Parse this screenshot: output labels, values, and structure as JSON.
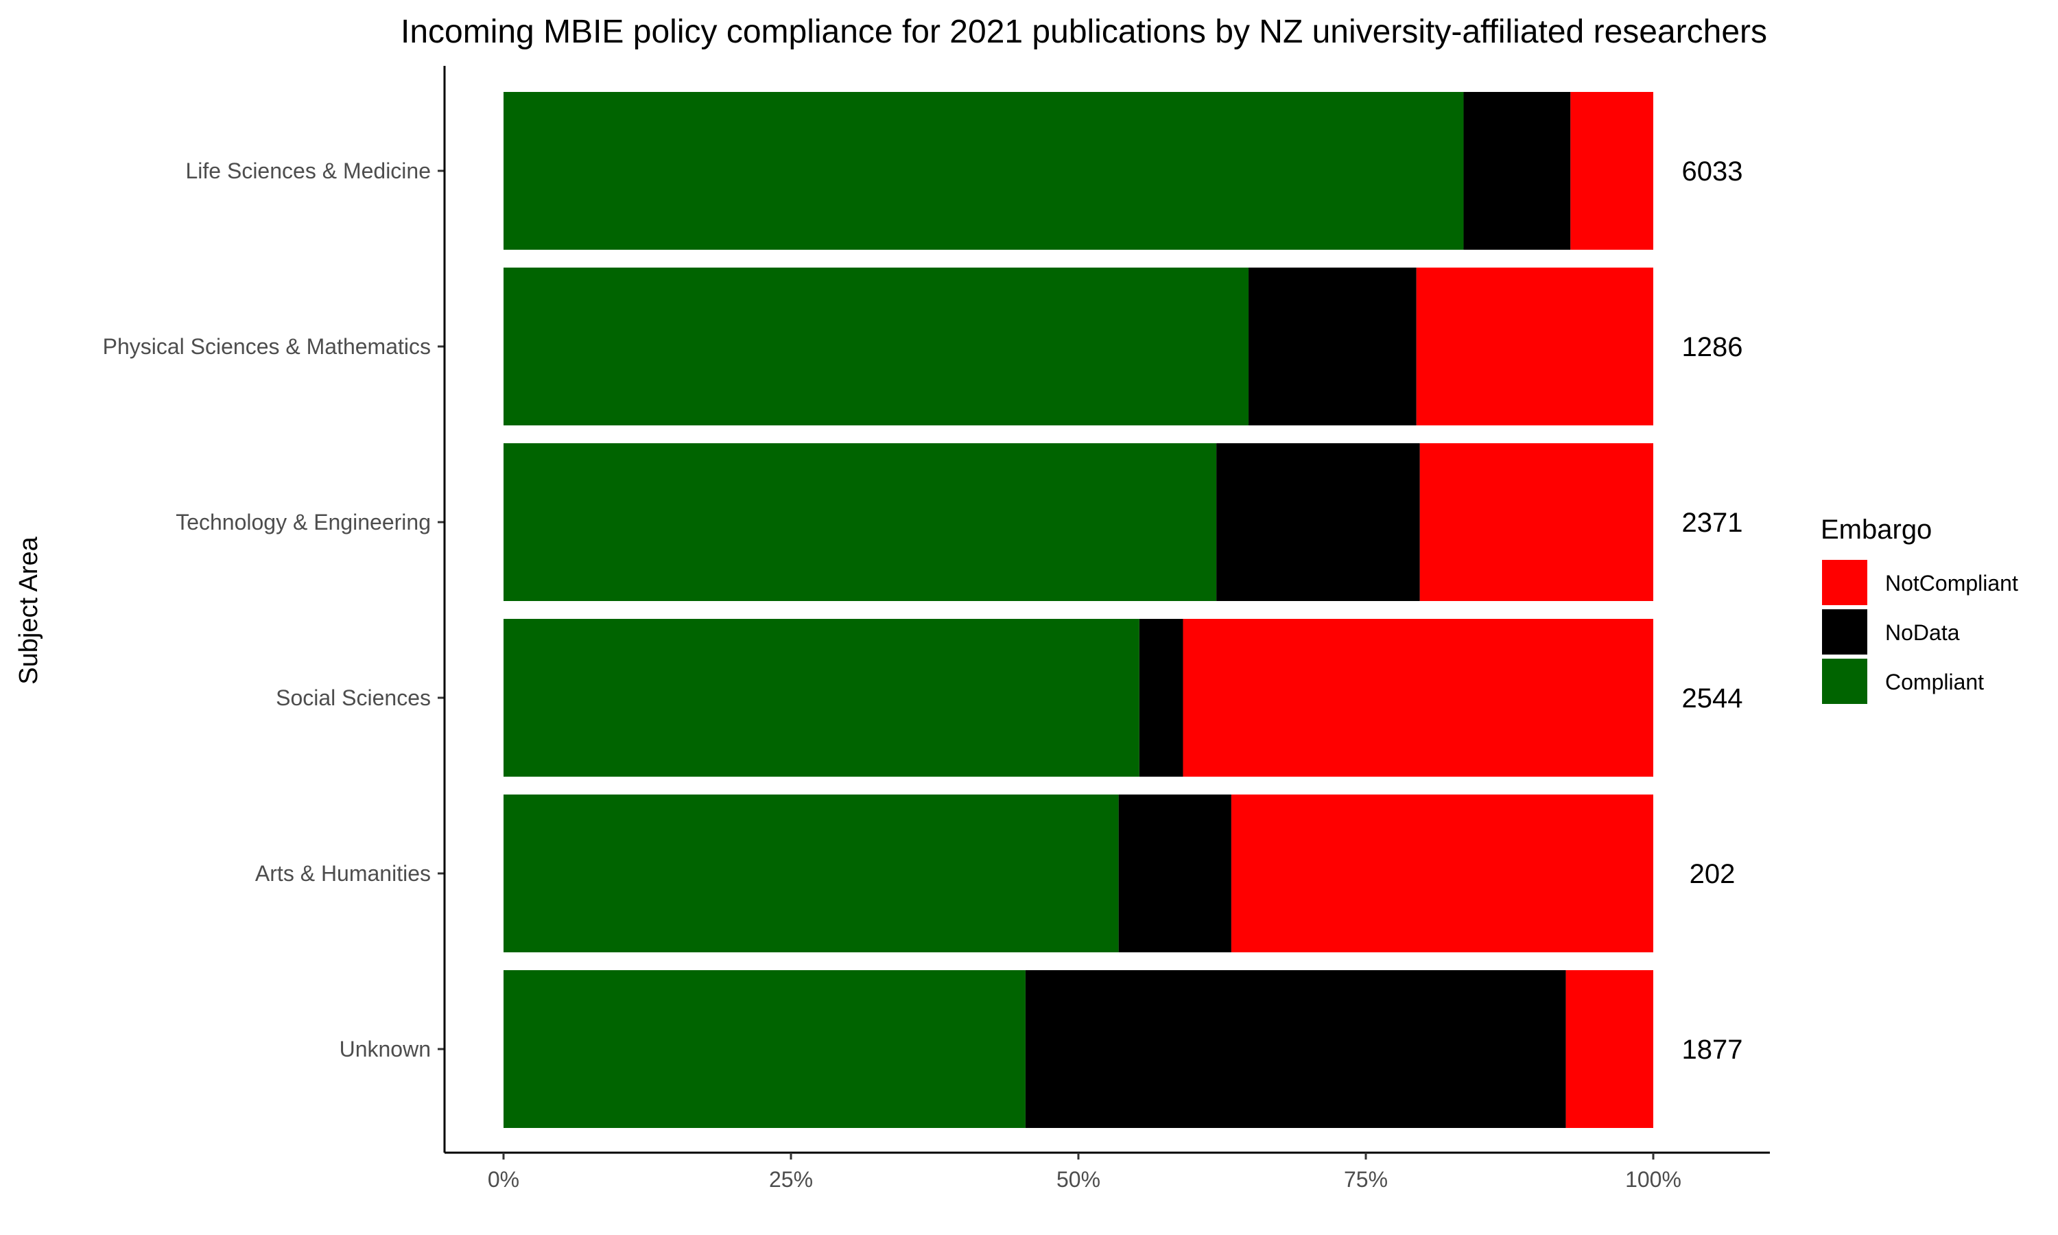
{
  "chart_data": {
    "type": "bar",
    "orientation": "horizontal",
    "stacked": true,
    "title": "Incoming MBIE policy compliance for 2021 publications by NZ university-affiliated researchers",
    "xlabel": "",
    "ylabel": "Subject Area",
    "xlim": [
      0,
      1
    ],
    "x_ticks": [
      "0%",
      "25%",
      "50%",
      "75%",
      "100%"
    ],
    "grid": false,
    "legend_position": "right",
    "legend_title": "Embargo",
    "categories": [
      "Life Sciences & Medicine",
      "Physical Sciences & Mathematics",
      "Technology & Engineering",
      "Social Sciences",
      "Arts & Humanities",
      "Unknown"
    ],
    "series": [
      {
        "name": "Compliant",
        "color": "#006400",
        "values": [
          0.835,
          0.648,
          0.62,
          0.553,
          0.535,
          0.454
        ]
      },
      {
        "name": "NoData",
        "color": "#000000",
        "values": [
          0.093,
          0.146,
          0.177,
          0.038,
          0.098,
          0.47
        ]
      },
      {
        "name": "NotCompliant",
        "color": "#ff0000",
        "values": [
          0.072,
          0.206,
          0.203,
          0.409,
          0.367,
          0.076
        ]
      }
    ],
    "legend_order": [
      "NotCompliant",
      "NoData",
      "Compliant"
    ],
    "counts": [
      "6033",
      "1286",
      "2371",
      "2544",
      "202",
      "1877"
    ]
  }
}
